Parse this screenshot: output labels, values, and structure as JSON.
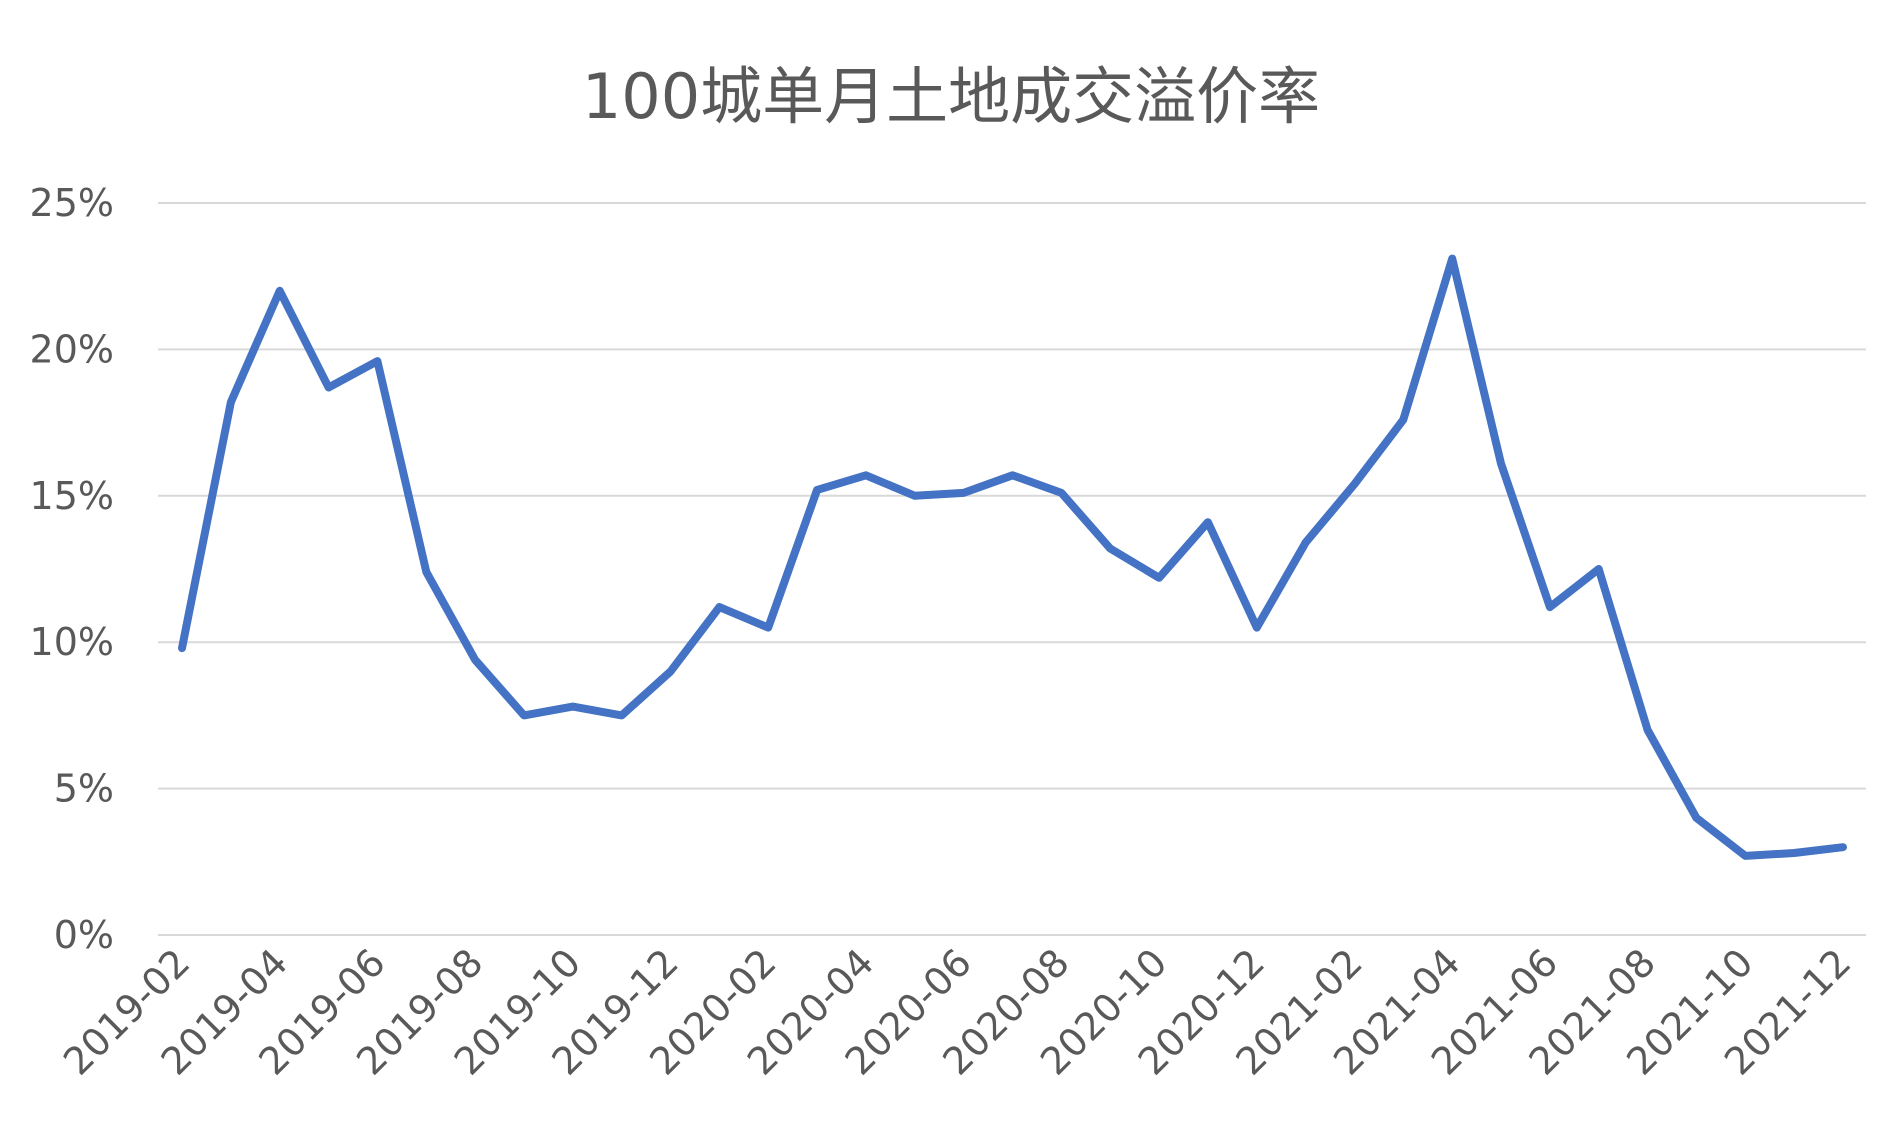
{
  "chart_data": {
    "type": "line",
    "title": "100城单月土地成交溢价率",
    "xlabel": "",
    "ylabel": "",
    "ylim": [
      0,
      25
    ],
    "yticks": [
      "0%",
      "5%",
      "10%",
      "15%",
      "20%",
      "25%"
    ],
    "x_tick_labels": [
      "2019-02",
      "2019-04",
      "2019-06",
      "2019-08",
      "2019-10",
      "2019-12",
      "2020-02",
      "2020-04",
      "2020-06",
      "2020-08",
      "2020-10",
      "2020-12",
      "2021-02",
      "2021-04",
      "2021-06",
      "2021-08",
      "2021-10",
      "2021-12"
    ],
    "grid": true,
    "legend": "none",
    "colors": {
      "line": "#4472c4",
      "grid": "#d9d9d9",
      "text": "#595959"
    },
    "x": [
      "2019-02",
      "2019-03",
      "2019-04",
      "2019-05",
      "2019-06",
      "2019-07",
      "2019-08",
      "2019-09",
      "2019-10",
      "2019-11",
      "2019-12",
      "2020-01",
      "2020-02",
      "2020-03",
      "2020-04",
      "2020-05",
      "2020-06",
      "2020-07",
      "2020-08",
      "2020-09",
      "2020-10",
      "2020-11",
      "2020-12",
      "2021-01",
      "2021-02",
      "2021-03",
      "2021-04",
      "2021-05",
      "2021-06",
      "2021-07",
      "2021-08",
      "2021-09",
      "2021-10",
      "2021-11",
      "2021-12"
    ],
    "series": [
      {
        "values": [
          9.8,
          18.2,
          22.0,
          18.7,
          19.6,
          12.4,
          9.4,
          7.5,
          7.8,
          7.5,
          9.0,
          11.2,
          10.5,
          15.2,
          15.7,
          15.0,
          15.1,
          15.7,
          15.1,
          13.2,
          12.2,
          14.1,
          10.5,
          13.4,
          15.4,
          17.6,
          23.1,
          16.1,
          11.2,
          12.5,
          7.0,
          4.0,
          2.7,
          2.8,
          3.0
        ]
      }
    ]
  }
}
